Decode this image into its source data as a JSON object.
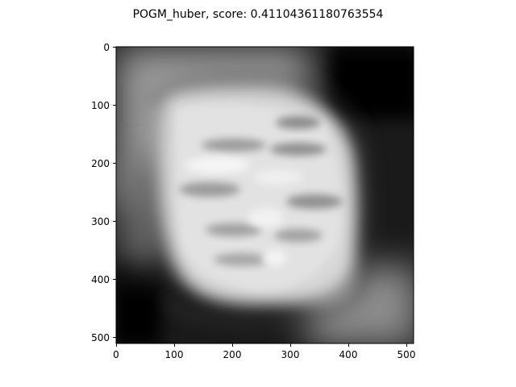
{
  "figure": {
    "title": "POGM_huber, score: 0.41104361180763554"
  },
  "axes": {
    "x_ticks": [
      "0",
      "100",
      "200",
      "300",
      "400",
      "500"
    ],
    "y_ticks": [
      "0",
      "100",
      "200",
      "300",
      "400",
      "500"
    ]
  },
  "image": {
    "description_colormap": "gray",
    "content": "blurry grayscale reconstruction of a rounded bright blob"
  }
}
